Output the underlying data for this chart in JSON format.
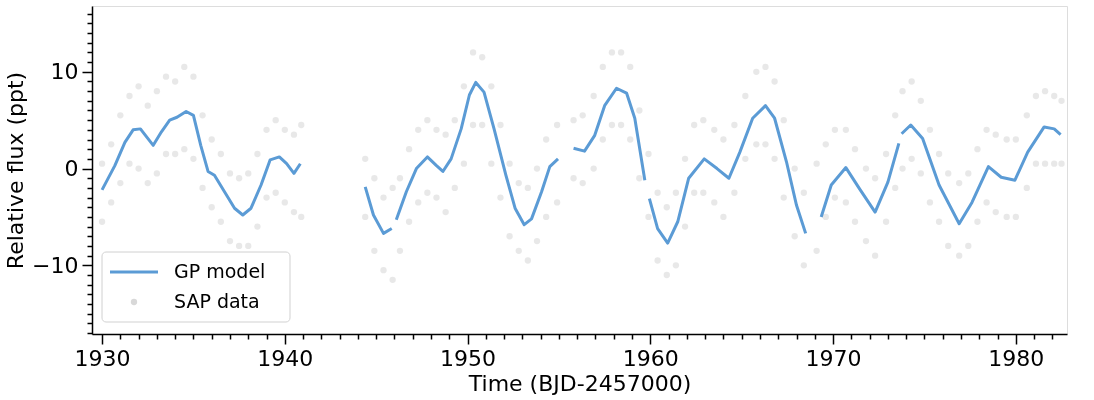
{
  "chart_data": {
    "type": "scatter",
    "xlabel": "Time (BJD-2457000)",
    "ylabel": "Relative flux (ppt)",
    "xlim": [
      1929.45,
      1982.8
    ],
    "ylim": [
      -17.1,
      16.8
    ],
    "grid": false,
    "legend": "bottom left",
    "xticks": [
      1930,
      {
        "value": 1931,
        "label": null
      },
      {
        "value": 1932,
        "label": null
      },
      {
        "value": 1933,
        "label": null
      },
      {
        "value": 1934,
        "label": null
      },
      {
        "value": 1935,
        "label": null
      },
      {
        "value": 1936,
        "label": null
      },
      {
        "value": 1937,
        "label": null
      },
      {
        "value": 1938,
        "label": null
      },
      {
        "value": 1939,
        "label": null
      },
      1940,
      {
        "value": 1941,
        "label": null
      },
      {
        "value": 1942,
        "label": null
      },
      {
        "value": 1943,
        "label": null
      },
      {
        "value": 1944,
        "label": null
      },
      {
        "value": 1945,
        "label": null
      },
      {
        "value": 1946,
        "label": null
      },
      {
        "value": 1947,
        "label": null
      },
      {
        "value": 1948,
        "label": null
      },
      {
        "value": 1949,
        "label": null
      },
      1950,
      {
        "value": 1951,
        "label": null
      },
      {
        "value": 1952,
        "label": null
      },
      {
        "value": 1953,
        "label": null
      },
      {
        "value": 1954,
        "label": null
      },
      {
        "value": 1955,
        "label": null
      },
      {
        "value": 1956,
        "label": null
      },
      {
        "value": 1957,
        "label": null
      },
      {
        "value": 1958,
        "label": null
      },
      {
        "value": 1959,
        "label": null
      },
      1960,
      {
        "value": 1961,
        "label": null
      },
      {
        "value": 1962,
        "label": null
      },
      {
        "value": 1963,
        "label": null
      },
      {
        "value": 1964,
        "label": null
      },
      {
        "value": 1965,
        "label": null
      },
      {
        "value": 1966,
        "label": null
      },
      {
        "value": 1967,
        "label": null
      },
      {
        "value": 1968,
        "label": null
      },
      {
        "value": 1969,
        "label": null
      },
      1970,
      {
        "value": 1971,
        "label": null
      },
      {
        "value": 1972,
        "label": null
      },
      {
        "value": 1973,
        "label": null
      },
      {
        "value": 1974,
        "label": null
      },
      {
        "value": 1975,
        "label": null
      },
      {
        "value": 1976,
        "label": null
      },
      {
        "value": 1977,
        "label": null
      },
      {
        "value": 1978,
        "label": null
      },
      {
        "value": 1979,
        "label": null
      },
      1980,
      {
        "value": 1981,
        "label": null
      },
      {
        "value": 1982,
        "label": null
      }
    ],
    "yticks": [
      {
        "value": -17,
        "label": null
      },
      {
        "value": -16,
        "label": null
      },
      {
        "value": -15,
        "label": null
      },
      {
        "value": -14,
        "label": null
      },
      {
        "value": -13,
        "label": null
      },
      {
        "value": -12,
        "label": null
      },
      {
        "value": -11,
        "label": null
      },
      {
        "value": -10,
        "label": "−10"
      },
      {
        "value": -9,
        "label": null
      },
      {
        "value": -8,
        "label": null
      },
      {
        "value": -7,
        "label": null
      },
      {
        "value": -6,
        "label": null
      },
      {
        "value": -5,
        "label": null
      },
      {
        "value": -4,
        "label": null
      },
      {
        "value": -3,
        "label": null
      },
      {
        "value": -2,
        "label": null
      },
      {
        "value": -1,
        "label": null
      },
      0,
      {
        "value": 1,
        "label": null
      },
      {
        "value": 2,
        "label": null
      },
      {
        "value": 3,
        "label": null
      },
      {
        "value": 4,
        "label": null
      },
      {
        "value": 5,
        "label": null
      },
      {
        "value": 6,
        "label": null
      },
      {
        "value": 7,
        "label": null
      },
      {
        "value": 8,
        "label": null
      },
      {
        "value": 9,
        "label": null
      },
      10,
      {
        "value": 11,
        "label": null
      },
      {
        "value": 12,
        "label": null
      },
      {
        "value": 13,
        "label": null
      },
      {
        "value": 14,
        "label": null
      },
      {
        "value": 15,
        "label": null
      },
      {
        "value": 16,
        "label": null
      }
    ],
    "series": [
      {
        "name": "GP model",
        "type": "line",
        "color": "#5b9bd5",
        "marker": "none",
        "line_style": "solid",
        "x": [
          1930.0,
          1930.7,
          1931.25,
          1931.7,
          1932.1,
          1932.3,
          1932.8,
          1933.25,
          1933.7,
          1934.1,
          1934.6,
          1935.0,
          1935.4,
          1935.8,
          1936.15,
          1936.7,
          1937.25,
          1937.7,
          1938.15,
          1938.7,
          1939.2,
          1939.7,
          1940.1,
          1940.5,
          1940.85,
          1942.5,
          1944.4,
          1944.85,
          1945.4,
          1945.85,
          1946.0,
          1946.1,
          1946.65,
          1947.2,
          1947.8,
          1948.3,
          1948.65,
          1949.1,
          1949.65,
          1950.1,
          1950.45,
          1950.9,
          1951.45,
          1952.1,
          1952.6,
          1953.1,
          1953.5,
          1954.05,
          1954.5,
          1954.95,
          1955.4,
          1955.8,
          1956.4,
          1956.95,
          1957.5,
          1958.15,
          1958.7,
          1959.15,
          1959.7,
          1959.8,
          1959.95,
          1960.4,
          1960.95,
          1961.5,
          1962.1,
          1962.95,
          1963.65,
          1964.3,
          1964.9,
          1965.6,
          1966.3,
          1966.8,
          1967.45,
          1968.0,
          1968.5,
          1968.9,
          1969.35,
          1969.9,
          1970.7,
          1971.45,
          1972.3,
          1973.0,
          1973.6,
          1973.7,
          1973.75,
          1974.25,
          1974.9,
          1975.8,
          1976.9,
          1977.6,
          1978.5,
          1979.2,
          1979.95,
          1980.65,
          1981.55,
          1982.1,
          1982.45
        ],
        "values": [
          -2.2,
          0.3,
          2.7,
          4.0,
          4.1,
          3.6,
          2.4,
          3.8,
          5.0,
          5.3,
          5.9,
          5.5,
          2.4,
          -0.3,
          -0.7,
          -2.4,
          -4.1,
          -4.8,
          -4.1,
          -1.7,
          0.9,
          1.2,
          0.5,
          -0.5,
          0.5,
          null,
          -1.9,
          -4.8,
          -6.7,
          -6.2,
          null,
          -5.3,
          -2.4,
          0.0,
          1.2,
          0.3,
          -0.3,
          1.0,
          4.1,
          7.6,
          8.9,
          7.9,
          4.1,
          -0.7,
          -4.1,
          -5.8,
          -5.2,
          -2.4,
          0.2,
          1.0,
          null,
          2.1,
          1.8,
          3.4,
          6.5,
          8.3,
          7.8,
          5.2,
          -1.2,
          null,
          -3.1,
          -6.2,
          -7.7,
          -5.5,
          -1.0,
          1.0,
          0.0,
          -1.0,
          1.7,
          5.2,
          6.5,
          5.2,
          0.7,
          -3.8,
          -6.7,
          null,
          -5.0,
          -1.7,
          0.1,
          -2.1,
          -4.5,
          -1.4,
          2.6,
          null,
          3.6,
          4.5,
          3.1,
          -1.7,
          -5.7,
          -3.5,
          0.2,
          -0.9,
          -1.2,
          1.7,
          4.3,
          4.1,
          3.5
        ]
      },
      {
        "name": "SAP data",
        "color": "#7f7f7f",
        "marker": "circle",
        "x": [
          1930.0,
          1930.0,
          1930.5,
          1930.5,
          1931.0,
          1931.0,
          1931.5,
          1931.5,
          1932.0,
          1932.0,
          1932.5,
          1932.5,
          1933.0,
          1933.0,
          1933.5,
          1933.5,
          1934.0,
          1934.0,
          1934.5,
          1934.5,
          1935.0,
          1935.0,
          1935.5,
          1935.5,
          1936.0,
          1936.0,
          1936.5,
          1936.5,
          1937.0,
          1937.0,
          1937.5,
          1937.5,
          1938.0,
          1938.0,
          1938.5,
          1938.5,
          1939.0,
          1939.0,
          1939.5,
          1939.5,
          1940.0,
          1940.0,
          1940.5,
          1940.5,
          1940.9,
          1940.9,
          1944.4,
          1944.4,
          1944.9,
          1944.9,
          1945.4,
          1945.4,
          1945.9,
          1945.9,
          1946.3,
          1946.3,
          1946.8,
          1946.8,
          1947.3,
          1947.3,
          1947.8,
          1947.8,
          1948.3,
          1948.3,
          1948.8,
          1948.8,
          1949.3,
          1949.3,
          1949.8,
          1949.8,
          1950.3,
          1950.3,
          1950.8,
          1950.8,
          1951.3,
          1951.3,
          1951.8,
          1951.8,
          1952.3,
          1952.3,
          1952.8,
          1952.8,
          1953.3,
          1953.3,
          1953.8,
          1953.8,
          1954.3,
          1954.3,
          1954.9,
          1954.9,
          1955.8,
          1955.8,
          1956.3,
          1956.3,
          1956.9,
          1956.9,
          1957.4,
          1957.4,
          1957.9,
          1957.9,
          1958.4,
          1958.4,
          1958.9,
          1958.9,
          1959.4,
          1959.4,
          1959.9,
          1959.9,
          1960.4,
          1960.4,
          1960.9,
          1960.9,
          1961.4,
          1961.4,
          1961.9,
          1961.9,
          1962.4,
          1962.4,
          1962.9,
          1962.9,
          1963.5,
          1963.5,
          1964.0,
          1964.0,
          1964.6,
          1964.6,
          1965.2,
          1965.2,
          1965.8,
          1965.8,
          1966.3,
          1966.3,
          1966.8,
          1966.8,
          1967.3,
          1967.3,
          1967.9,
          1967.9,
          1968.4,
          1968.4,
          1969.1,
          1969.1,
          1969.6,
          1969.6,
          1970.1,
          1970.1,
          1970.7,
          1970.7,
          1971.2,
          1971.2,
          1971.8,
          1971.8,
          1972.3,
          1972.3,
          1972.9,
          1972.9,
          1973.4,
          1973.4,
          1973.8,
          1973.8,
          1974.3,
          1974.3,
          1974.8,
          1974.8,
          1975.3,
          1975.3,
          1975.8,
          1975.8,
          1976.3,
          1976.3,
          1976.9,
          1976.9,
          1977.4,
          1977.4,
          1977.9,
          1977.9,
          1978.4,
          1978.4,
          1978.9,
          1978.9,
          1979.5,
          1979.5,
          1980.0,
          1980.0,
          1980.6,
          1980.6,
          1981.1,
          1981.1,
          1981.6,
          1981.6,
          1982.1,
          1982.1,
          1982.5,
          1982.5
        ],
        "values": [
          0.5,
          -5.5,
          2.5,
          -3.5,
          5.5,
          -1.5,
          7.5,
          0.5,
          8.5,
          0.0,
          6.5,
          -1.5,
          8.0,
          -0.5,
          9.5,
          1.5,
          9.0,
          1.5,
          10.5,
          2.0,
          9.5,
          1.0,
          5.5,
          -2.0,
          3.0,
          -4.0,
          1.5,
          -5.5,
          -0.5,
          -7.5,
          -1.0,
          -8.0,
          -0.5,
          -8.0,
          1.5,
          -6.0,
          4.0,
          -3.0,
          5.0,
          -2.5,
          4.0,
          -3.5,
          3.5,
          -4.5,
          4.5,
          -5.0,
          1.0,
          -5.0,
          -1.0,
          -8.5,
          -3.0,
          -10.5,
          -2.0,
          -11.5,
          -1.0,
          -8.5,
          2.0,
          -5.5,
          4.0,
          -3.5,
          5.0,
          -2.5,
          4.0,
          -3.0,
          3.5,
          -4.5,
          5.0,
          -2.0,
          8.5,
          0.5,
          12.0,
          4.5,
          11.5,
          4.5,
          8.5,
          0.5,
          4.5,
          -3.0,
          0.5,
          -7.0,
          -1.5,
          -8.5,
          -2.0,
          -9.5,
          0.0,
          -7.5,
          3.0,
          -5.0,
          4.5,
          -3.5,
          5.0,
          -1.0,
          5.5,
          -1.5,
          7.5,
          0.0,
          10.5,
          3.0,
          12.0,
          4.5,
          12.0,
          4.5,
          10.5,
          3.0,
          6.0,
          -1.0,
          1.5,
          -5.0,
          -2.5,
          -9.5,
          -4.0,
          -11.0,
          -2.5,
          -10.0,
          1.0,
          -6.0,
          4.5,
          -2.5,
          5.0,
          -2.5,
          4.0,
          -3.5,
          3.0,
          -5.0,
          4.5,
          -2.5,
          7.5,
          1.0,
          10.0,
          2.5,
          10.5,
          2.5,
          9.0,
          1.0,
          5.0,
          -3.0,
          0.0,
          -7.0,
          -2.5,
          -10.0,
          0.5,
          -8.5,
          2.5,
          -5.0,
          4.0,
          -3.0,
          4.0,
          -3.5,
          2.0,
          -5.5,
          0.0,
          -7.5,
          -1.0,
          -9.0,
          1.5,
          -5.5,
          5.5,
          -2.0,
          8.0,
          0.0,
          9.0,
          1.0,
          7.0,
          -0.5,
          4.0,
          -3.5,
          1.5,
          -5.5,
          -0.5,
          -8.0,
          -1.5,
          -9.0,
          -0.5,
          -8.0,
          2.0,
          -5.5,
          4.0,
          -3.5,
          3.5,
          -4.5,
          3.0,
          -5.0,
          3.0,
          -5.0,
          5.5,
          -2.0,
          7.5,
          0.5,
          8.0,
          0.5,
          7.5,
          0.5,
          7.0,
          0.5
        ]
      }
    ]
  }
}
